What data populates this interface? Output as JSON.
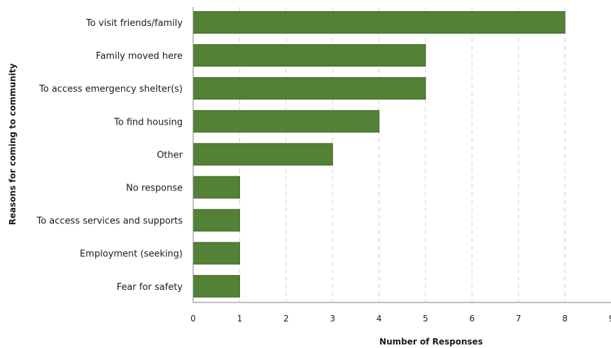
{
  "chart_data": {
    "type": "bar",
    "orientation": "horizontal",
    "categories": [
      "To visit friends/family",
      "Family moved here",
      "To access emergency shelter(s)",
      "To find housing",
      "Other",
      "No response",
      "To access services and supports",
      "Employment (seeking)",
      "Fear for safety"
    ],
    "values": [
      8,
      5,
      5,
      4,
      3,
      1,
      1,
      1,
      1
    ],
    "xlabel": "Number of Responses",
    "ylabel": "Reasons for coming to community",
    "xlim": [
      0,
      9
    ],
    "xticks": [
      "0",
      "1",
      "2",
      "3",
      "4",
      "5",
      "6",
      "7",
      "8",
      "9"
    ],
    "grid": "vertical-dashed",
    "colors": {
      "bar": "#538135",
      "bar_edge": "#3f6428",
      "grid": "#d0d0d0",
      "axis": "#7f7f7f"
    }
  }
}
